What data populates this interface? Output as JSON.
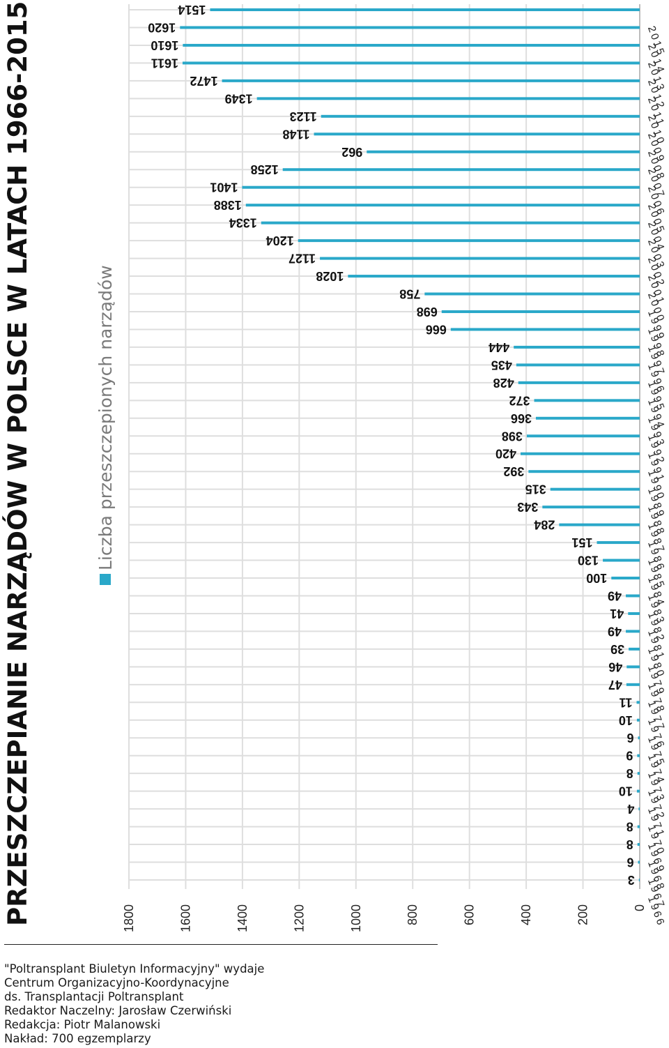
{
  "title": "PRZESZCZEPIANIE NARZĄDÓW W POLSCE W LATACH 1966-2015",
  "legend": {
    "label": "Liczba przeszczepionych narządów",
    "color": "#2aa8c9"
  },
  "footer": {
    "lines": [
      "\"Poltransplant Biuletyn Informacyjny\" wydaje",
      "Centrum Organizacyjno-Koordynacyjne",
      "ds. Transplantacji Poltransplant",
      "Redaktor Naczelny: Jarosław Czerwiński",
      "Redakcja: Piotr Malanowski",
      "Nakład: 700 egzemplarzy"
    ]
  },
  "chart_data": {
    "type": "bar",
    "orientation": "horizontal",
    "title": "PRZESZCZEPIANIE NARZĄDÓW W POLSCE W LATACH 1966-2015",
    "xlabel": "",
    "ylabel": "",
    "xlim": [
      0,
      1800
    ],
    "ticks": [
      "0",
      "200",
      "400",
      "600",
      "800",
      "1000",
      "1200",
      "1400",
      "1600",
      "1800"
    ],
    "grid": true,
    "bar_color": "#2aa8c9",
    "series": [
      {
        "name": "Liczba przeszczepionych narządów",
        "categories": [
          "1966",
          "1967",
          "1968",
          "1969",
          "1970",
          "1971",
          "1972",
          "1973",
          "1974",
          "1975",
          "1976",
          "1977",
          "1978",
          "1979",
          "1980",
          "1981",
          "1982",
          "1983",
          "1984",
          "1985",
          "1986",
          "1987",
          "1988",
          "1989",
          "1990",
          "1991",
          "1992",
          "1993",
          "1994",
          "1995",
          "1996",
          "1997",
          "1998",
          "1999",
          "2000",
          "2001",
          "2002",
          "2003",
          "2004",
          "2005",
          "2006",
          "2007",
          "2008",
          "2009",
          "2010",
          "2011",
          "2012",
          "2013",
          "2014",
          "2015"
        ],
        "values": [
          3,
          6,
          8,
          8,
          4,
          10,
          8,
          9,
          6,
          10,
          11,
          47,
          46,
          39,
          49,
          41,
          49,
          100,
          130,
          151,
          284,
          343,
          315,
          392,
          420,
          398,
          366,
          372,
          428,
          435,
          444,
          666,
          698,
          758,
          1028,
          1127,
          1204,
          1334,
          1388,
          1401,
          1258,
          962,
          1148,
          1123,
          1349,
          1472,
          1611,
          1610,
          1620,
          1514
        ]
      }
    ]
  }
}
